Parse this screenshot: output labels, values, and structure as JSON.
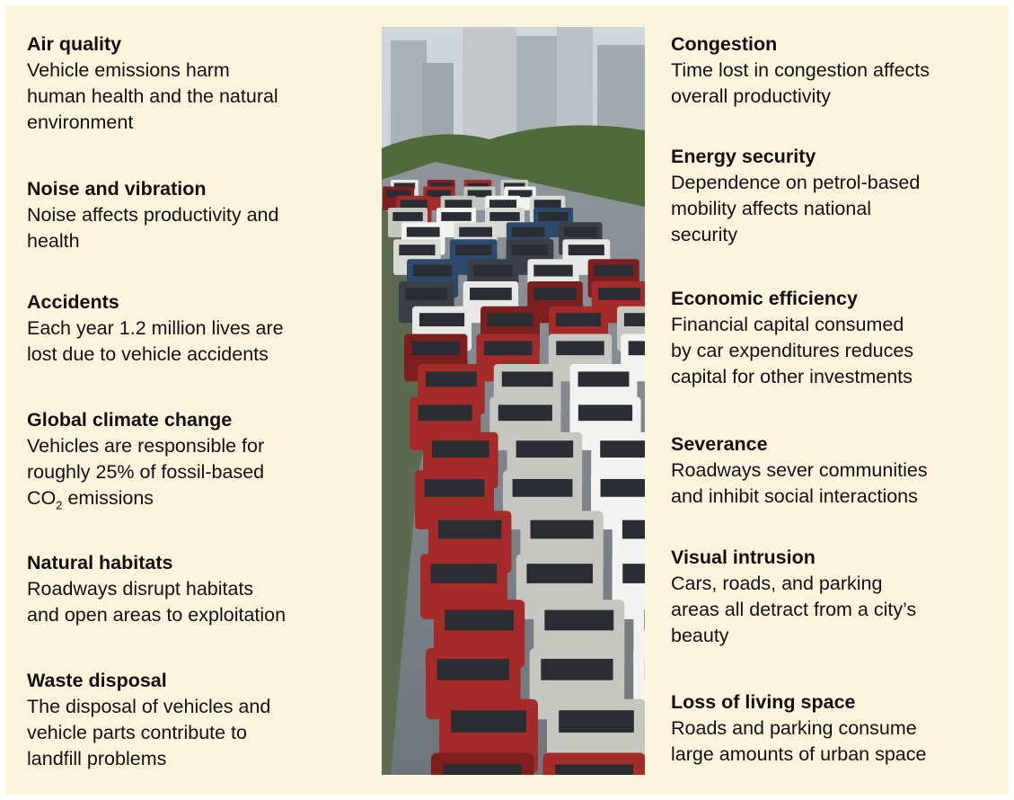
{
  "left": [
    {
      "title": "Air quality",
      "lines": [
        "Vehicle emissions harm",
        "human health and the natural",
        "environment"
      ]
    },
    {
      "title": "Noise and vibration",
      "lines": [
        "Noise affects productivity and",
        "health"
      ]
    },
    {
      "title": "Accidents",
      "lines": [
        "Each year 1.2 million lives are",
        "lost due to vehicle accidents"
      ]
    },
    {
      "title": "Global climate change",
      "lines": [
        "Vehicles are responsible for",
        "roughly 25% of fossil-based"
      ],
      "formula": {
        "base": "CO",
        "subscript": "2",
        "rest": " emissions"
      }
    },
    {
      "title": "Natural habitats",
      "lines": [
        "Roadways disrupt habitats",
        "and open areas to exploitation"
      ]
    },
    {
      "title": "Waste disposal",
      "lines": [
        "The disposal of vehicles and",
        "vehicle parts contribute to",
        "landfill problems"
      ]
    }
  ],
  "right": [
    {
      "title": "Congestion",
      "lines": [
        "Time lost in congestion affects",
        "overall productivity"
      ]
    },
    {
      "title": "Energy security",
      "lines": [
        "Dependence on petrol-based",
        "mobility affects national",
        "security"
      ]
    },
    {
      "title": "Economic efficiency",
      "lines": [
        "Financial capital consumed",
        "by car expenditures reduces",
        "capital for other investments"
      ]
    },
    {
      "title": "Severance",
      "lines": [
        "Roadways sever communities",
        "and inhibit social interactions"
      ]
    },
    {
      "title": "Visual intrusion",
      "lines": [
        "Cars, roads, and parking",
        "areas all detract from a city’s",
        "beauty"
      ]
    },
    {
      "title": "Loss of living space",
      "lines": [
        "Roads and parking consume",
        "large amounts of urban space"
      ]
    }
  ]
}
